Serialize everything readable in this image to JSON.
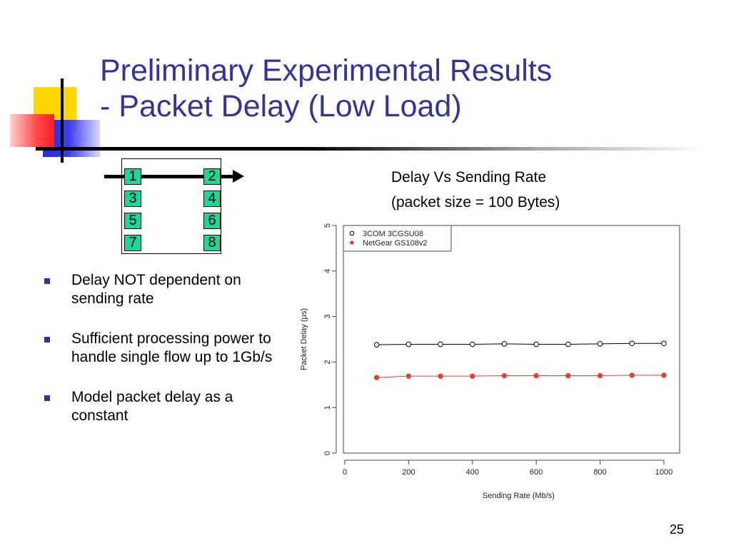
{
  "slide": {
    "title_line1": "Preliminary Experimental Results",
    "title_line2": "- Packet Delay (Low Load)",
    "bullets": [
      "Delay NOT dependent on sending rate",
      "Sufficient processing power to handle single flow up to 1Gb/s",
      "Model packet delay as a constant"
    ],
    "page_number": "25",
    "colors": {
      "title": "#33339a",
      "bullet": "#33339a",
      "port": "#1dd79a"
    }
  },
  "switch_diagram": {
    "ports_left": [
      "1",
      "3",
      "5",
      "7"
    ],
    "ports_right": [
      "2",
      "4",
      "6",
      "8"
    ]
  },
  "chart_heading": {
    "line1": "Delay Vs Sending Rate",
    "line2": "(packet size = 100 Bytes)"
  },
  "chart_data": {
    "type": "line",
    "xlabel": "Sending Rate (Mb/s)",
    "ylabel": "Packet Delay (µs)",
    "xlim": [
      0,
      1000
    ],
    "ylim": [
      0,
      5
    ],
    "xticks": [
      0,
      200,
      400,
      600,
      800,
      1000
    ],
    "yticks": [
      0,
      1,
      2,
      3,
      4,
      5
    ],
    "x": [
      100,
      200,
      300,
      400,
      500,
      600,
      700,
      800,
      900,
      1000
    ],
    "legend_position": "top-left",
    "series": [
      {
        "name": "3COM 3CGSU08",
        "marker": "open-circle",
        "color": "#000000",
        "values": [
          2.38,
          2.39,
          2.39,
          2.39,
          2.4,
          2.39,
          2.39,
          2.4,
          2.41,
          2.41
        ]
      },
      {
        "name": "NetGear GS108v2",
        "marker": "filled-dot",
        "color": "#e8402e",
        "values": [
          1.66,
          1.69,
          1.69,
          1.69,
          1.7,
          1.7,
          1.7,
          1.7,
          1.71,
          1.71
        ]
      }
    ]
  }
}
